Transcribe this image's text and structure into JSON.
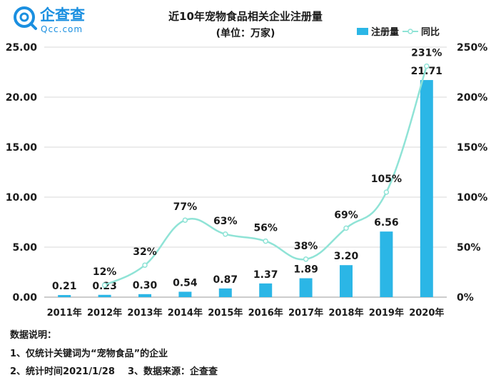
{
  "brand": {
    "name": "企查查",
    "domain": "Qcc.com",
    "color": "#1a8fe0"
  },
  "notes": {
    "heading": "数据说明：",
    "line1": "1、仅统计关键词为“宠物食品”的企业",
    "line2": "2、统计时间2021/1/28    3、数据来源：企查查"
  },
  "chart_data": {
    "type": "bar",
    "title": "近10年宠物食品相关企业注册量",
    "subtitle": "(单位：万家)",
    "categories": [
      "2011年",
      "2012年",
      "2013年",
      "2014年",
      "2015年",
      "2016年",
      "2017年",
      "2018年",
      "2019年",
      "2020年"
    ],
    "series": [
      {
        "name": "注册量",
        "type": "bar",
        "axis": "left",
        "color": "#2bb6e6",
        "values": [
          0.21,
          0.23,
          0.3,
          0.54,
          0.87,
          1.37,
          1.89,
          3.2,
          6.56,
          21.71
        ],
        "labels": [
          "0.21",
          "0.23",
          "0.30",
          "0.54",
          "0.87",
          "1.37",
          "1.89",
          "3.20",
          "6.56",
          "21.71"
        ]
      },
      {
        "name": "同比",
        "type": "line",
        "axis": "right",
        "color": "#8fe3d6",
        "values": [
          null,
          12,
          32,
          77,
          63,
          56,
          38,
          69,
          105,
          231
        ],
        "labels": [
          "",
          "12%",
          "32%",
          "77%",
          "63%",
          "56%",
          "38%",
          "69%",
          "105%",
          "231%"
        ]
      }
    ],
    "y_left": {
      "ylim": [
        0,
        25
      ],
      "ticks": [
        "0.00",
        "5.00",
        "10.00",
        "15.00",
        "20.00",
        "25.00"
      ]
    },
    "y_right": {
      "ylim": [
        0,
        250
      ],
      "ticks": [
        "0%",
        "50%",
        "100%",
        "150%",
        "200%",
        "250%"
      ]
    },
    "grid": true,
    "legend_position": "top-right"
  }
}
